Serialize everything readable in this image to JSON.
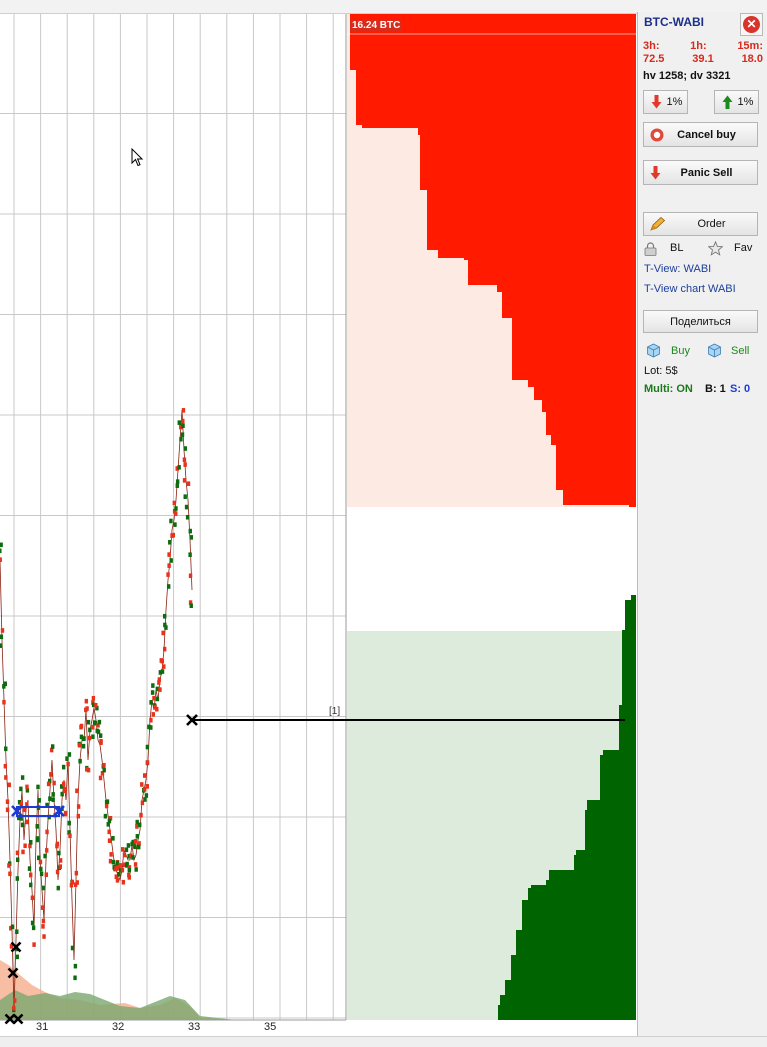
{
  "window": {
    "title": "BTC-WABI"
  },
  "colors": {
    "ask_dark": "#ff1a00",
    "ask_light": "#fdebe3",
    "bid_dark": "#006400",
    "bid_light": "#dcebdc",
    "trade_buy": "#0e6b0e",
    "trade_sell": "#e8321c",
    "grid": "#c8c8c8",
    "volume_sell": "#f4a886",
    "volume_buy": "#7aa86e",
    "order_line": "#000000",
    "panel_bg": "#f0f0f0",
    "title_blue": "#1b2f8a",
    "stat_red": "#d72a1c",
    "multi_green": "#1b7a1b",
    "counter_blue": "#1b3fd4"
  },
  "order_book": {
    "top_label": "16.24 BTC"
  },
  "chart": {
    "x_ticks": [
      {
        "label": "31",
        "value": 31
      },
      {
        "label": "32",
        "value": 32
      },
      {
        "label": "33",
        "value": 33
      },
      {
        "label": "35",
        "value": 35
      }
    ],
    "order_tag": "[1]"
  },
  "panel": {
    "stats": {
      "labels": [
        "3h:",
        "1h:",
        "15m:"
      ],
      "values": [
        "72.5",
        "39.1",
        "18.0"
      ]
    },
    "hv_dv": "hv 1258; dv 3321",
    "down_pct": "1%",
    "up_pct": "1%",
    "cancel_buy": "Cancel buy",
    "panic_sell": "Panic Sell",
    "order": "Order",
    "bl": "BL",
    "fav": "Fav",
    "tview": "T-View: WABI",
    "tview_chart": "T-View chart WABI",
    "share": "Поделиться",
    "buy": "Buy",
    "sell": "Sell",
    "lot": "Lot: 5$",
    "multi": "Multi: ON",
    "b_count": "B: 1",
    "s_count": "S: 0"
  },
  "icons": [
    "close-icon",
    "arrow-down-icon",
    "arrow-up-icon",
    "cancel-icon",
    "pencil-icon",
    "lock-icon",
    "star-icon",
    "cube-icon",
    "cursor-icon"
  ]
}
